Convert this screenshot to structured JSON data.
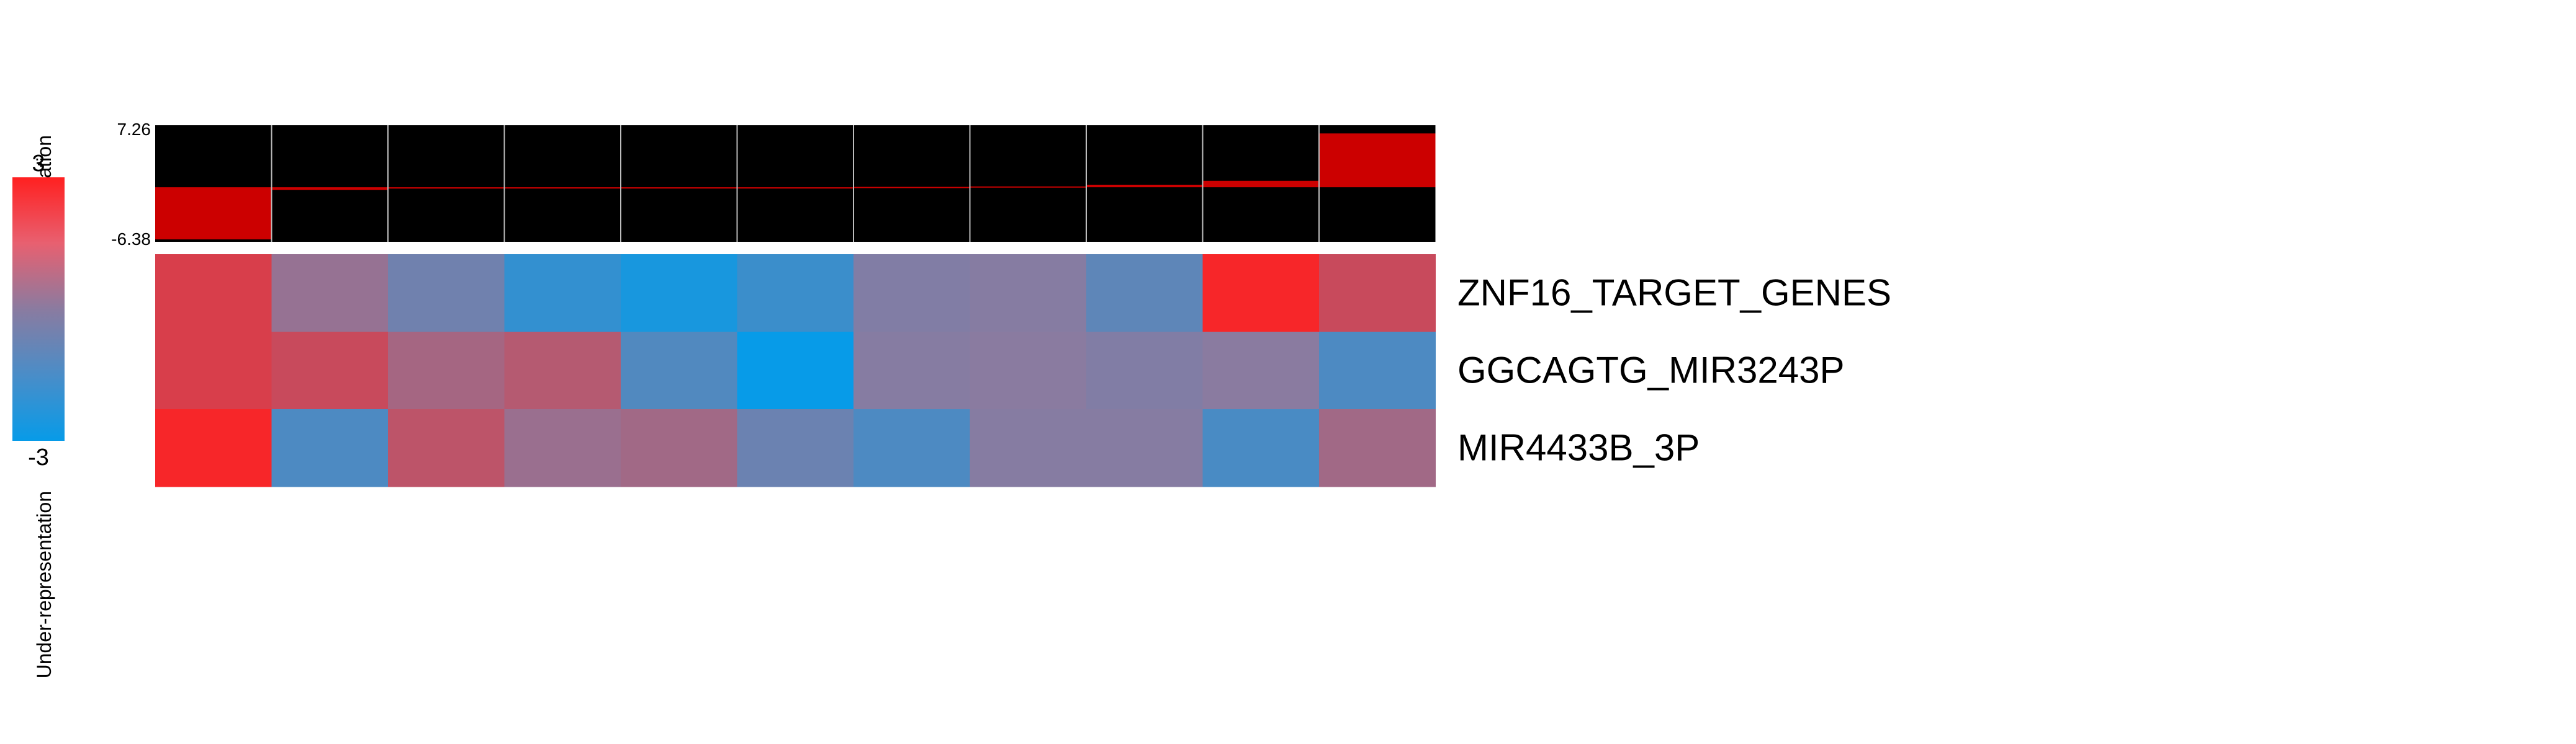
{
  "legend": {
    "over_label": "Over-representation",
    "under_label": "Under-representation",
    "max_label": "3",
    "min_label": "-3",
    "scale_max": 3,
    "scale_min": -3,
    "colors": {
      "high": "#ff2020",
      "mid": "#8a7ba0",
      "low": "#079be8"
    }
  },
  "chart_data": {
    "type": "heatmap",
    "barplot": {
      "ymax_label": "7.26",
      "ymin_label": "-6.38",
      "ylim": [
        -6.38,
        7.26
      ],
      "values": [
        -6.1,
        -0.3,
        -0.15,
        -0.1,
        -0.05,
        -0.02,
        0.05,
        0.1,
        0.3,
        0.75,
        6.3
      ],
      "bar_color": "#cc0000",
      "background": "#000000"
    },
    "rows": [
      {
        "name": "ZNF16_TARGET_GENES",
        "values": [
          2.0,
          0.3,
          -0.6,
          -2.0,
          -2.6,
          -1.8,
          -0.2,
          -0.1,
          -1.0,
          2.8,
          1.6
        ]
      },
      {
        "name": "GGCAGTG_MIR3243P",
        "values": [
          2.0,
          1.6,
          0.7,
          1.1,
          -1.3,
          -3.0,
          -0.1,
          0.0,
          -0.2,
          0.0,
          -1.4
        ]
      },
      {
        "name": "MIR4433B_3P",
        "values": [
          2.8,
          -1.4,
          1.3,
          0.4,
          0.6,
          -0.7,
          -1.4,
          -0.1,
          -0.1,
          -1.5,
          0.6
        ]
      }
    ]
  }
}
